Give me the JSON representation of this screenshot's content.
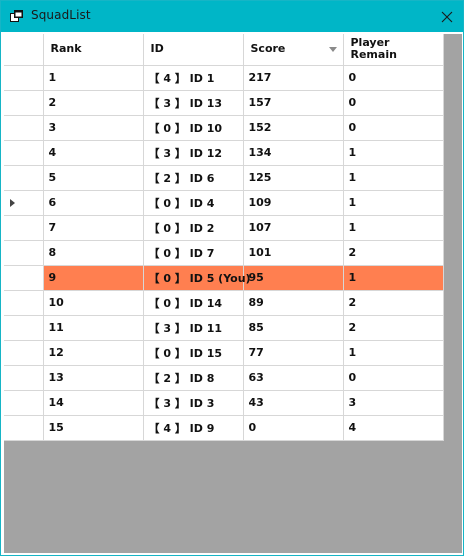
{
  "window": {
    "title": "SquadList"
  },
  "grid": {
    "columns": [
      "Rank",
      "ID",
      "Score",
      "Player\nRemain"
    ],
    "sorted_column": "Score",
    "current_row_index": 5,
    "highlight_color": "#ff7f50",
    "rows": [
      {
        "rank": "1",
        "id": "【 4 】 ID 1",
        "score": "217",
        "remain": "0"
      },
      {
        "rank": "2",
        "id": "【 3 】 ID 13",
        "score": "157",
        "remain": "0"
      },
      {
        "rank": "3",
        "id": "【 0 】 ID 10",
        "score": "152",
        "remain": "0"
      },
      {
        "rank": "4",
        "id": "【 3 】 ID 12",
        "score": "134",
        "remain": "1"
      },
      {
        "rank": "5",
        "id": "【 2 】 ID 6",
        "score": "125",
        "remain": "1"
      },
      {
        "rank": "6",
        "id": "【 0 】 ID 4",
        "score": "109",
        "remain": "1"
      },
      {
        "rank": "7",
        "id": "【 0 】 ID 2",
        "score": "107",
        "remain": "1"
      },
      {
        "rank": "8",
        "id": "【 0 】 ID 7",
        "score": "101",
        "remain": "2"
      },
      {
        "rank": "9",
        "id": "【 0 】 ID 5 (You)",
        "score": "95",
        "remain": "1"
      },
      {
        "rank": "10",
        "id": "【 0 】 ID 14",
        "score": "89",
        "remain": "2"
      },
      {
        "rank": "11",
        "id": "【 3 】 ID 11",
        "score": "85",
        "remain": "2"
      },
      {
        "rank": "12",
        "id": "【 0 】 ID 15",
        "score": "77",
        "remain": "1"
      },
      {
        "rank": "13",
        "id": "【 2 】 ID 8",
        "score": "63",
        "remain": "0"
      },
      {
        "rank": "14",
        "id": "【 3 】 ID 3",
        "score": "43",
        "remain": "3"
      },
      {
        "rank": "15",
        "id": "【 4 】 ID 9",
        "score": "0",
        "remain": "4"
      }
    ]
  }
}
